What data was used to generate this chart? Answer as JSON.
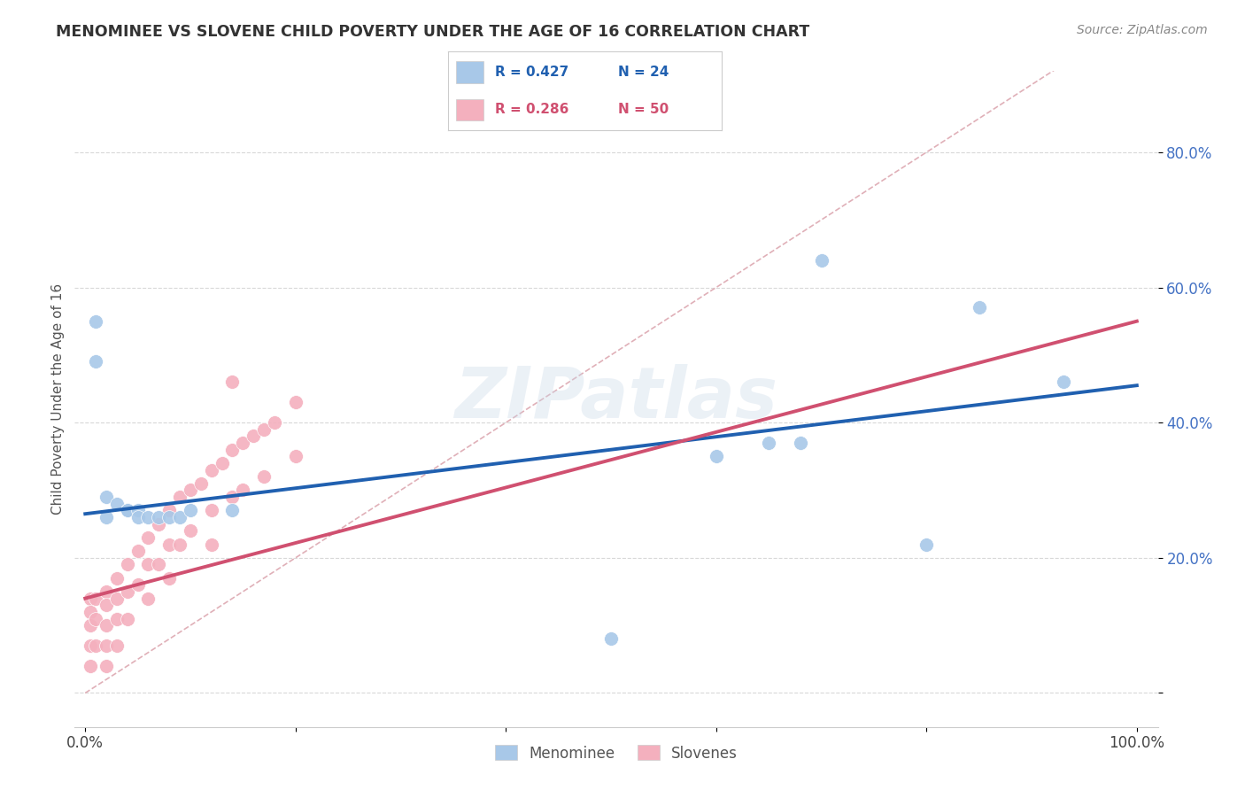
{
  "title": "MENOMINEE VS SLOVENE CHILD POVERTY UNDER THE AGE OF 16 CORRELATION CHART",
  "source": "Source: ZipAtlas.com",
  "ylabel": "Child Poverty Under the Age of 16",
  "xlim": [
    -0.01,
    1.02
  ],
  "ylim": [
    -0.05,
    0.92
  ],
  "xticks": [
    0.0,
    0.2,
    0.4,
    0.6,
    0.8,
    1.0
  ],
  "xticklabels": [
    "0.0%",
    "",
    "",
    "",
    "",
    "100.0%"
  ],
  "yticks": [
    0.0,
    0.2,
    0.4,
    0.6,
    0.8
  ],
  "yticklabels": [
    "",
    "20.0%",
    "40.0%",
    "60.0%",
    "80.0%"
  ],
  "menominee_color": "#a8c8e8",
  "slovene_color": "#f4b0be",
  "menominee_line_color": "#2060b0",
  "slovene_line_color": "#d05070",
  "diagonal_color": "#e0b0b8",
  "watermark": "ZIPatlas",
  "background_color": "#ffffff",
  "grid_color": "#d8d8d8",
  "menominee_x": [
    0.01,
    0.01,
    0.02,
    0.02,
    0.03,
    0.04,
    0.04,
    0.05,
    0.05,
    0.06,
    0.07,
    0.08,
    0.09,
    0.1,
    0.14,
    0.5,
    0.6,
    0.65,
    0.68,
    0.7,
    0.8,
    0.85,
    0.93
  ],
  "menominee_y": [
    0.55,
    0.49,
    0.29,
    0.26,
    0.28,
    0.27,
    0.27,
    0.27,
    0.26,
    0.26,
    0.26,
    0.26,
    0.26,
    0.27,
    0.27,
    0.08,
    0.35,
    0.37,
    0.37,
    0.64,
    0.22,
    0.57,
    0.46
  ],
  "slovene_x": [
    0.005,
    0.005,
    0.005,
    0.005,
    0.005,
    0.01,
    0.01,
    0.01,
    0.02,
    0.02,
    0.02,
    0.02,
    0.02,
    0.03,
    0.03,
    0.03,
    0.03,
    0.04,
    0.04,
    0.04,
    0.05,
    0.05,
    0.06,
    0.06,
    0.06,
    0.07,
    0.07,
    0.08,
    0.08,
    0.08,
    0.09,
    0.09,
    0.1,
    0.1,
    0.11,
    0.12,
    0.12,
    0.12,
    0.13,
    0.14,
    0.14,
    0.15,
    0.15,
    0.16,
    0.17,
    0.17,
    0.18,
    0.2,
    0.2,
    0.14
  ],
  "slovene_y": [
    0.14,
    0.12,
    0.1,
    0.07,
    0.04,
    0.14,
    0.11,
    0.07,
    0.15,
    0.13,
    0.1,
    0.07,
    0.04,
    0.17,
    0.14,
    0.11,
    0.07,
    0.19,
    0.15,
    0.11,
    0.21,
    0.16,
    0.23,
    0.19,
    0.14,
    0.25,
    0.19,
    0.27,
    0.22,
    0.17,
    0.29,
    0.22,
    0.3,
    0.24,
    0.31,
    0.33,
    0.27,
    0.22,
    0.34,
    0.36,
    0.29,
    0.37,
    0.3,
    0.38,
    0.39,
    0.32,
    0.4,
    0.43,
    0.35,
    0.46
  ],
  "menominee_line_start_x": 0.0,
  "menominee_line_start_y": 0.265,
  "menominee_line_end_x": 1.0,
  "menominee_line_end_y": 0.455,
  "slovene_line_start_x": 0.0,
  "slovene_line_start_y": 0.14,
  "slovene_line_end_x": 1.0,
  "slovene_line_end_y": 0.55
}
